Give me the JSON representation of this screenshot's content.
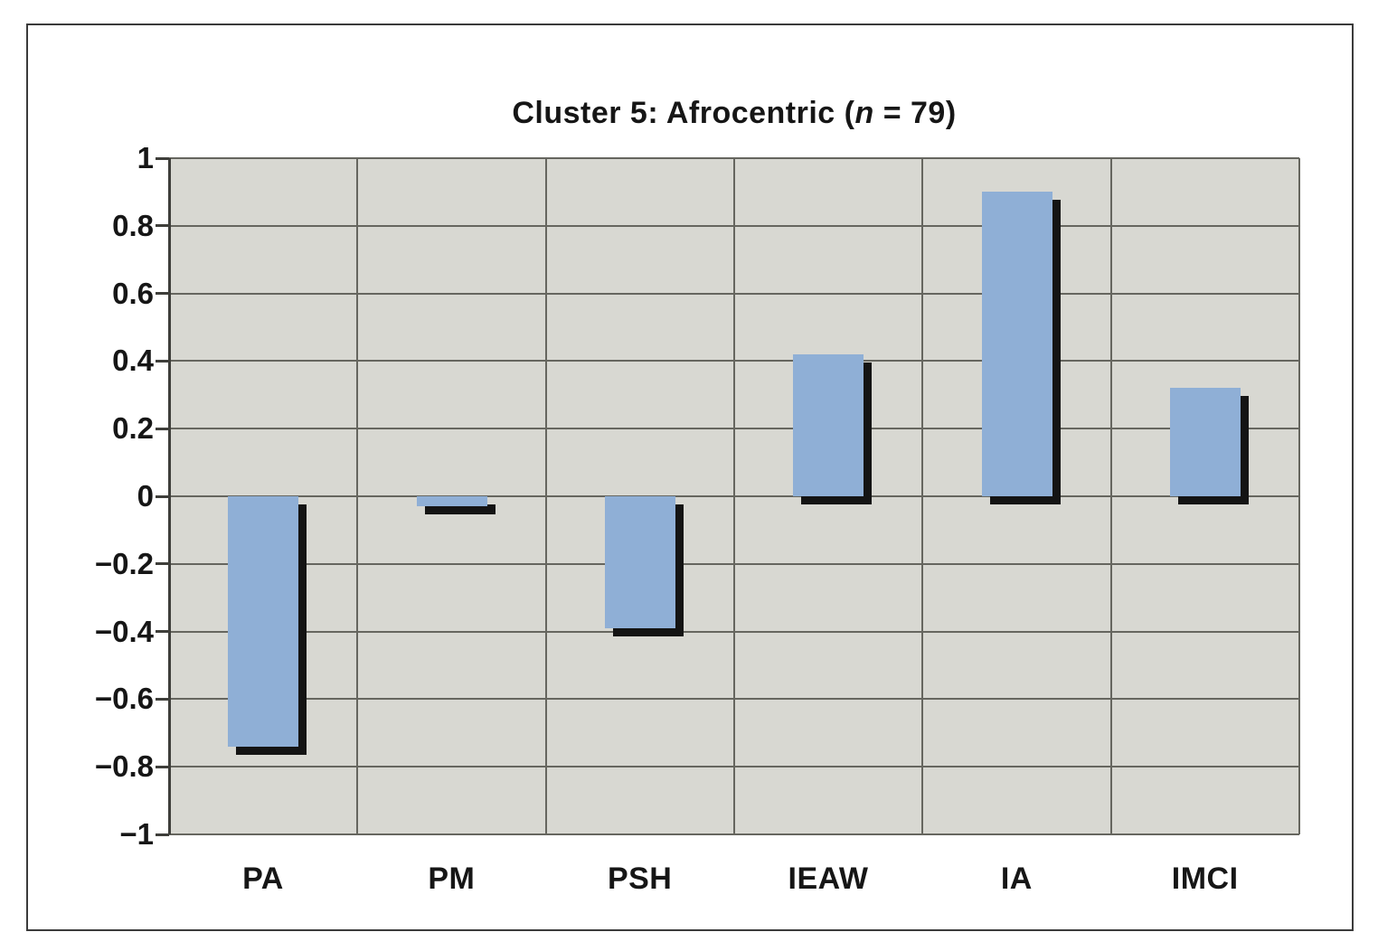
{
  "chart_data": {
    "type": "bar",
    "title": {
      "prefix": "Cluster 5: Afrocentric (",
      "italic": "n",
      "suffix": " = 79)"
    },
    "categories": [
      "PA",
      "PM",
      "PSH",
      "IEAW",
      "IA",
      "IMCI"
    ],
    "values": [
      -0.74,
      -0.03,
      -0.39,
      0.42,
      0.9,
      0.32
    ],
    "ylim": [
      -1,
      1
    ],
    "yticks": [
      1,
      0.8,
      0.6,
      0.4,
      0.2,
      0,
      -0.2,
      -0.4,
      -0.6,
      -0.8,
      -1
    ],
    "ytick_labels": [
      "1",
      "0.8",
      "0.6",
      "0.4",
      "0.2",
      "0",
      "−0.2",
      "−0.4",
      "−0.6",
      "−0.8",
      "−1"
    ],
    "grid": true,
    "legend": null,
    "xlabel": "",
    "ylabel": "",
    "colors": {
      "bar_fill": "#8fafd6",
      "bar_shadow": "#141414",
      "plot_background": "#d8d8d2",
      "gridline": "#66665f",
      "axis": "#3e3e3a",
      "text": "#161616",
      "frame_border": "#3b3b3b",
      "page_background": "#ffffff"
    }
  }
}
